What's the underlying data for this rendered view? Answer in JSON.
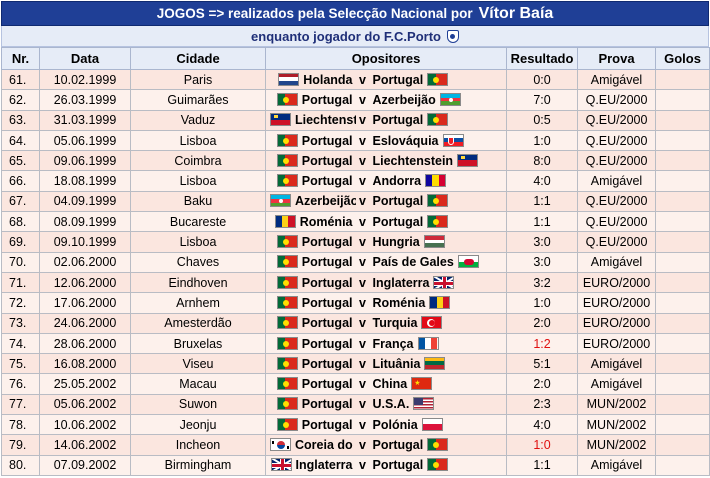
{
  "header": {
    "title_prefix": "JOGOS => realizados pela Selecção Nacional por",
    "title_name": "Vítor Baía",
    "subtitle": "enquanto jogador do F.C.Porto"
  },
  "columns": [
    "Nr.",
    "Data",
    "Cidade",
    "Opositores",
    "Resultado",
    "Prova",
    "Golos"
  ],
  "colors": {
    "title_bg": "#1f3f96",
    "row_bg_a": "#fbe6df",
    "row_bg_b": "#fdf1ec",
    "result_red": "#e01010"
  },
  "rows": [
    {
      "nr": "61.",
      "date": "10.02.1999",
      "city": "Paris",
      "home": "Holanda",
      "home_flag": "flag-netherlands",
      "vs": "v",
      "away": "Portugal",
      "away_flag": "flag-portugal",
      "result": "0:0",
      "red": false,
      "comp": "Amigável",
      "goals": ""
    },
    {
      "nr": "62.",
      "date": "26.03.1999",
      "city": "Guimarães",
      "home": "Portugal",
      "home_flag": "flag-portugal",
      "vs": "v",
      "away": "Azerbeijão",
      "away_flag": "flag-azerbaijan",
      "result": "7:0",
      "red": false,
      "comp": "Q.EU/2000",
      "goals": ""
    },
    {
      "nr": "63.",
      "date": "31.03.1999",
      "city": "Vaduz",
      "home": "Liechtenstein",
      "home_flag": "flag-liechtenstein",
      "vs": "v",
      "away": "Portugal",
      "away_flag": "flag-portugal",
      "result": "0:5",
      "red": false,
      "comp": "Q.EU/2000",
      "goals": ""
    },
    {
      "nr": "64.",
      "date": "05.06.1999",
      "city": "Lisboa",
      "home": "Portugal",
      "home_flag": "flag-portugal",
      "vs": "v",
      "away": "Eslováquia",
      "away_flag": "flag-slovakia",
      "result": "1:0",
      "red": false,
      "comp": "Q.EU/2000",
      "goals": ""
    },
    {
      "nr": "65.",
      "date": "09.06.1999",
      "city": "Coimbra",
      "home": "Portugal",
      "home_flag": "flag-portugal",
      "vs": "v",
      "away": "Liechtenstein",
      "away_flag": "flag-liechtenstein",
      "result": "8:0",
      "red": false,
      "comp": "Q.EU/2000",
      "goals": ""
    },
    {
      "nr": "66.",
      "date": "18.08.1999",
      "city": "Lisboa",
      "home": "Portugal",
      "home_flag": "flag-portugal",
      "vs": "v",
      "away": "Andorra",
      "away_flag": "flag-andorra",
      "result": "4:0",
      "red": false,
      "comp": "Amigável",
      "goals": ""
    },
    {
      "nr": "67.",
      "date": "04.09.1999",
      "city": "Baku",
      "home": "Azerbeijão",
      "home_flag": "flag-azerbaijan",
      "vs": "v",
      "away": "Portugal",
      "away_flag": "flag-portugal",
      "result": "1:1",
      "red": false,
      "comp": "Q.EU/2000",
      "goals": ""
    },
    {
      "nr": "68.",
      "date": "08.09.1999",
      "city": "Bucareste",
      "home": "Roménia",
      "home_flag": "flag-romania",
      "vs": "v",
      "away": "Portugal",
      "away_flag": "flag-portugal",
      "result": "1:1",
      "red": false,
      "comp": "Q.EU/2000",
      "goals": ""
    },
    {
      "nr": "69.",
      "date": "09.10.1999",
      "city": "Lisboa",
      "home": "Portugal",
      "home_flag": "flag-portugal",
      "vs": "v",
      "away": "Hungria",
      "away_flag": "flag-hungary",
      "result": "3:0",
      "red": false,
      "comp": "Q.EU/2000",
      "goals": ""
    },
    {
      "nr": "70.",
      "date": "02.06.2000",
      "city": "Chaves",
      "home": "Portugal",
      "home_flag": "flag-portugal",
      "vs": "v",
      "away": "País de Gales",
      "away_flag": "flag-wales",
      "result": "3:0",
      "red": false,
      "comp": "Amigável",
      "goals": ""
    },
    {
      "nr": "71.",
      "date": "12.06.2000",
      "city": "Eindhoven",
      "home": "Portugal",
      "home_flag": "flag-portugal",
      "vs": "v",
      "away": "Inglaterra",
      "away_flag": "flag-uk",
      "result": "3:2",
      "red": false,
      "comp": "EURO/2000",
      "goals": ""
    },
    {
      "nr": "72.",
      "date": "17.06.2000",
      "city": "Arnhem",
      "home": "Portugal",
      "home_flag": "flag-portugal",
      "vs": "v",
      "away": "Roménia",
      "away_flag": "flag-romania",
      "result": "1:0",
      "red": false,
      "comp": "EURO/2000",
      "goals": ""
    },
    {
      "nr": "73.",
      "date": "24.06.2000",
      "city": "Amesterdão",
      "home": "Portugal",
      "home_flag": "flag-portugal",
      "vs": "v",
      "away": "Turquia",
      "away_flag": "flag-turkey",
      "result": "2:0",
      "red": false,
      "comp": "EURO/2000",
      "goals": ""
    },
    {
      "nr": "74.",
      "date": "28.06.2000",
      "city": "Bruxelas",
      "home": "Portugal",
      "home_flag": "flag-portugal",
      "vs": "v",
      "away": "França",
      "away_flag": "flag-france",
      "result": "1:2",
      "red": true,
      "comp": "EURO/2000",
      "goals": ""
    },
    {
      "nr": "75.",
      "date": "16.08.2000",
      "city": "Viseu",
      "home": "Portugal",
      "home_flag": "flag-portugal",
      "vs": "v",
      "away": "Lituânia",
      "away_flag": "flag-lithuania",
      "result": "5:1",
      "red": false,
      "comp": "Amigável",
      "goals": ""
    },
    {
      "nr": "76.",
      "date": "25.05.2002",
      "city": "Macau",
      "home": "Portugal",
      "home_flag": "flag-portugal",
      "vs": "v",
      "away": "China",
      "away_flag": "flag-china",
      "result": "2:0",
      "red": false,
      "comp": "Amigável",
      "goals": ""
    },
    {
      "nr": "77.",
      "date": "05.06.2002",
      "city": "Suwon",
      "home": "Portugal",
      "home_flag": "flag-portugal",
      "vs": "v",
      "away": "U.S.A.",
      "away_flag": "flag-usa",
      "result": "2:3",
      "red": false,
      "comp": "MUN/2002",
      "goals": ""
    },
    {
      "nr": "78.",
      "date": "10.06.2002",
      "city": "Jeonju",
      "home": "Portugal",
      "home_flag": "flag-portugal",
      "vs": "v",
      "away": "Polónia",
      "away_flag": "flag-poland",
      "result": "4:0",
      "red": false,
      "comp": "MUN/2002",
      "goals": ""
    },
    {
      "nr": "79.",
      "date": "14.06.2002",
      "city": "Incheon",
      "home": "Coreia do Sul",
      "home_flag": "flag-south-korea",
      "vs": "v",
      "away": "Portugal",
      "away_flag": "flag-portugal",
      "result": "1:0",
      "red": true,
      "comp": "MUN/2002",
      "goals": ""
    },
    {
      "nr": "80.",
      "date": "07.09.2002",
      "city": "Birmingham",
      "home": "Inglaterra",
      "home_flag": "flag-uk",
      "vs": "v",
      "away": "Portugal",
      "away_flag": "flag-portugal",
      "result": "1:1",
      "red": false,
      "comp": "Amigável",
      "goals": ""
    }
  ]
}
